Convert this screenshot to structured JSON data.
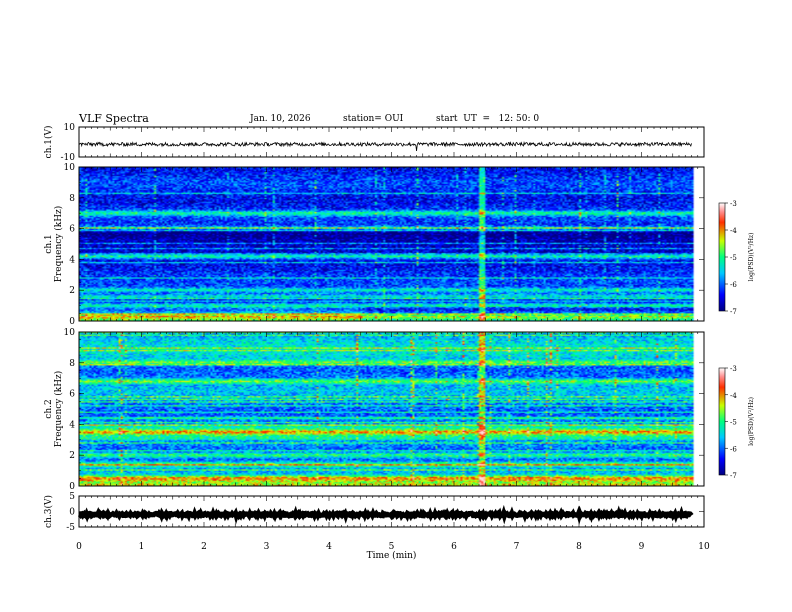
{
  "header": {
    "title": "VLF Spectra",
    "date": "Jan. 10, 2026",
    "station": "station= OUI",
    "start": "start  UT  =   12: 50: 0"
  },
  "chart_data": {
    "type": "heatmap",
    "title": "VLF Spectra",
    "date": "Jan. 10, 2026",
    "station": "OUI",
    "start_ut": "12:50:0",
    "xlabel": "Time (min)",
    "xlim": [
      0,
      10
    ],
    "x_ticks": [
      "0",
      "1",
      "2",
      "3",
      "4",
      "5",
      "6",
      "7",
      "8",
      "9",
      "10"
    ],
    "data_end_min": 9.8,
    "panels": [
      {
        "name": "ch1-waveform",
        "type": "line",
        "ylabel": "ch.1(V)",
        "ylim": [
          -10,
          10
        ],
        "y_ticks": [
          "10",
          "-10"
        ],
        "mean": -1.5,
        "amplitude": 1.2,
        "spike_at_min": 5.4
      },
      {
        "name": "ch1-spectrogram",
        "type": "heatmap",
        "ylabel": "ch.1 Frequency (kHz)",
        "ylim": [
          0,
          10
        ],
        "y_ticks": [
          "0",
          "2",
          "4",
          "6",
          "8",
          "10"
        ],
        "colorbar": {
          "label": "log(PSD)(V²/Hz)",
          "range": [
            -7,
            -3
          ],
          "ticks": [
            "-3",
            "-4",
            "-5",
            "-6",
            "-7"
          ]
        },
        "bands_khz": [
          0.3,
          1.0,
          1.6,
          2.0,
          4.2,
          6.0,
          7.0
        ]
      },
      {
        "name": "ch2-spectrogram",
        "type": "heatmap",
        "ylabel": "ch.2 Frequency (kHz)",
        "ylim": [
          0,
          10
        ],
        "y_ticks": [
          "0",
          "2",
          "4",
          "6",
          "8",
          "10"
        ],
        "colorbar": {
          "label": "log(PSD)(V²/Hz)",
          "range": [
            -7,
            -3
          ],
          "ticks": [
            "-3",
            "-4",
            "-5",
            "-6",
            "-7"
          ]
        },
        "bands_khz": [
          0.5,
          1.4,
          2.0,
          3.5,
          6.8,
          8.0
        ]
      },
      {
        "name": "ch3-waveform",
        "type": "line",
        "ylabel": "ch.3(V)",
        "ylim": [
          -5,
          5
        ],
        "y_ticks": [
          "5",
          "0",
          "-5"
        ],
        "mean": -1.0,
        "amplitude": 0.4
      }
    ]
  }
}
